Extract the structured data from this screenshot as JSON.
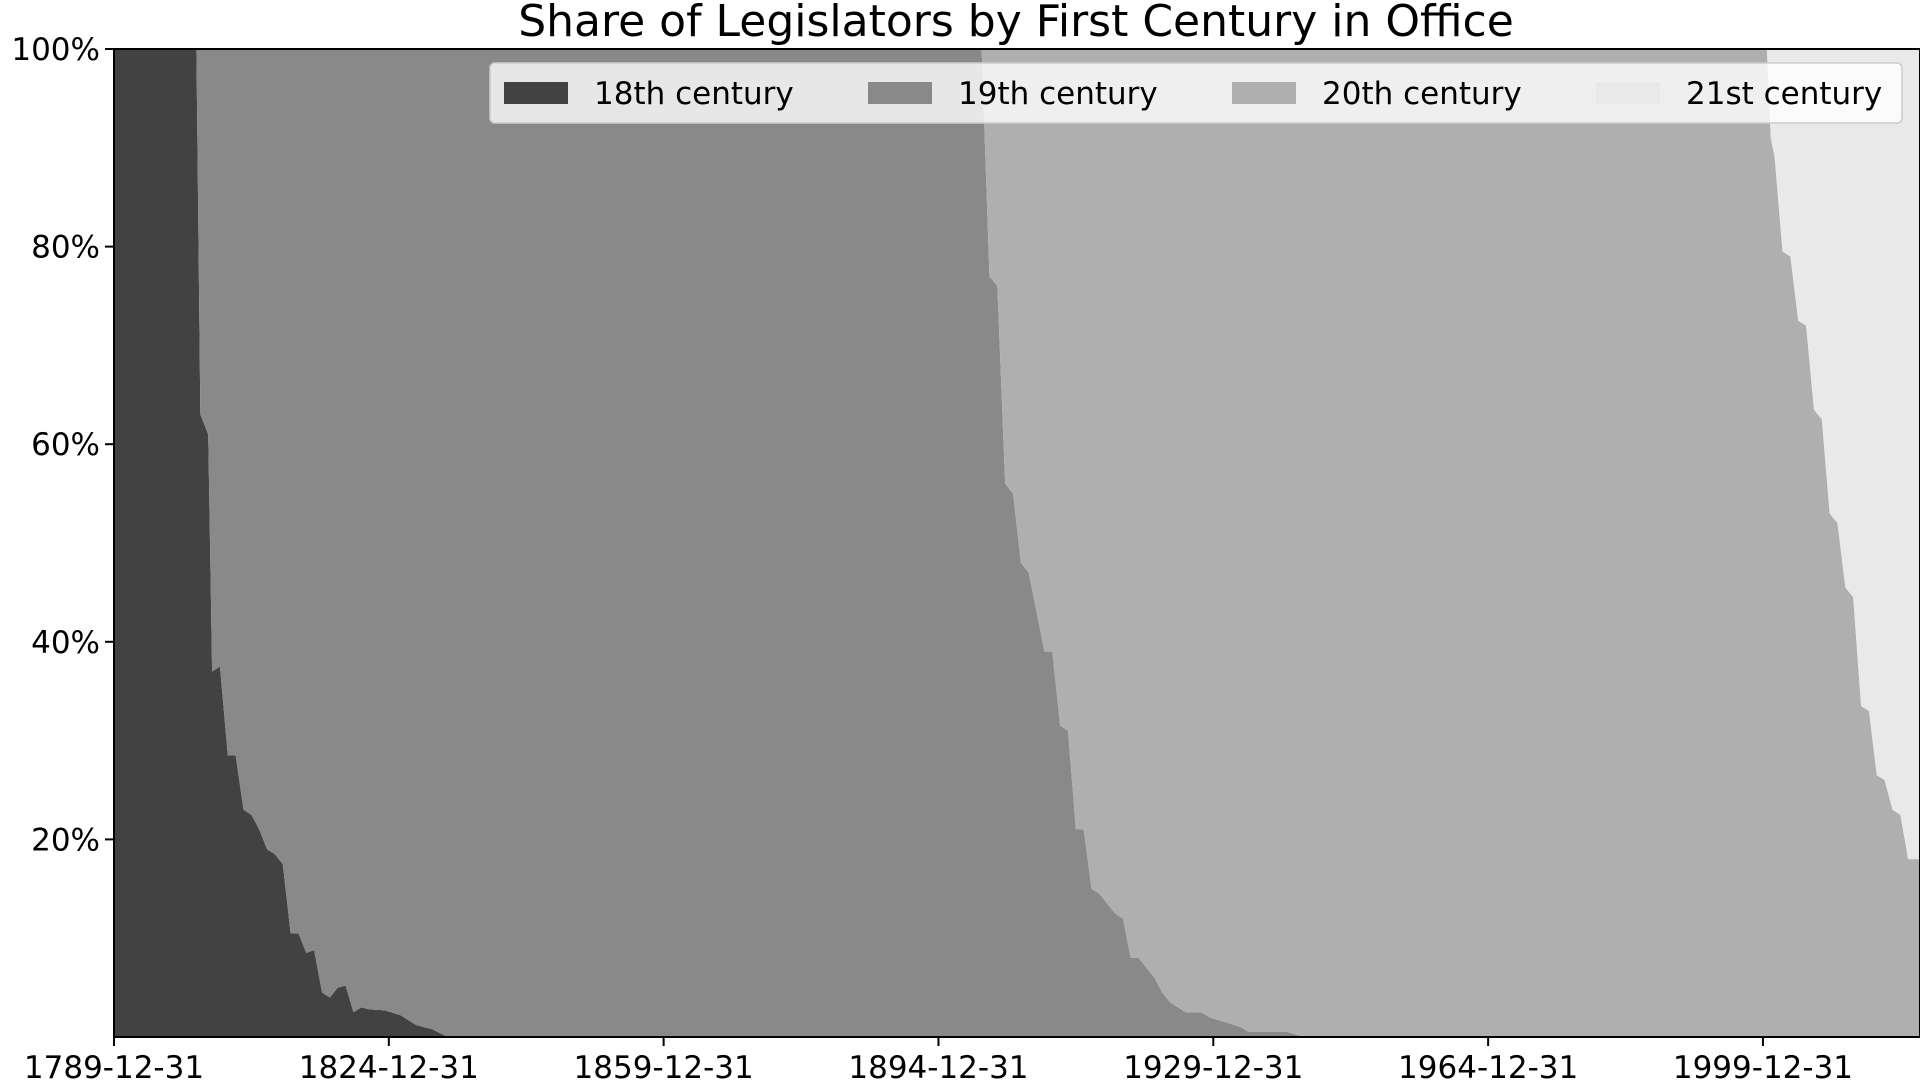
{
  "chart_data": {
    "type": "area",
    "stacked": true,
    "normalized": true,
    "title": "Share of Legislators by First Century in Office",
    "xlabel": "",
    "ylabel": "",
    "x_start": "1789-12-31",
    "x_end": "2019-12-31",
    "xlim": [
      "1789-12-31",
      "2019-12-31"
    ],
    "ylim": [
      0,
      1
    ],
    "x_ticks": [
      "1789-12-31",
      "1824-12-31",
      "1859-12-31",
      "1894-12-31",
      "1929-12-31",
      "1964-12-31",
      "1999-12-31"
    ],
    "y_ticks": [
      0.2,
      0.4,
      0.6,
      0.8,
      1.0
    ],
    "y_tick_labels": [
      "20%",
      "40%",
      "60%",
      "80%",
      "100%"
    ],
    "grid": false,
    "legend_position": "top-right",
    "series": [
      {
        "name": "18th century",
        "color": "#424242",
        "points": [
          [
            "1789-12-31",
            1.0
          ],
          [
            "1800-06-30",
            1.0
          ],
          [
            "1800-12-31",
            0.63
          ],
          [
            "1801-12-31",
            0.61
          ],
          [
            "1802-06-30",
            0.37
          ],
          [
            "1803-06-30",
            0.375
          ],
          [
            "1804-06-30",
            0.285
          ],
          [
            "1805-06-30",
            0.285
          ],
          [
            "1806-06-30",
            0.23
          ],
          [
            "1807-06-30",
            0.225
          ],
          [
            "1808-06-30",
            0.21
          ],
          [
            "1809-06-30",
            0.19
          ],
          [
            "1810-06-30",
            0.185
          ],
          [
            "1811-06-30",
            0.175
          ],
          [
            "1812-06-30",
            0.105
          ],
          [
            "1813-06-30",
            0.105
          ],
          [
            "1814-06-30",
            0.085
          ],
          [
            "1815-06-30",
            0.088
          ],
          [
            "1816-06-30",
            0.045
          ],
          [
            "1817-06-30",
            0.04
          ],
          [
            "1818-06-30",
            0.05
          ],
          [
            "1819-06-30",
            0.052
          ],
          [
            "1820-06-30",
            0.025
          ],
          [
            "1821-06-30",
            0.03
          ],
          [
            "1822-06-30",
            0.028
          ],
          [
            "1824-06-30",
            0.027
          ],
          [
            "1826-06-30",
            0.022
          ],
          [
            "1828-06-30",
            0.012
          ],
          [
            "1830-06-30",
            0.008
          ],
          [
            "1832-06-30",
            0.0
          ]
        ]
      },
      {
        "name": "19th century",
        "color": "#898989",
        "points": [
          [
            "1789-12-31",
            0.0
          ],
          [
            "1800-06-30",
            0.0
          ],
          [
            "1800-12-31",
            0.37
          ],
          [
            "1801-12-31",
            0.39
          ],
          [
            "1802-06-30",
            0.63
          ],
          [
            "1803-06-30",
            0.625
          ],
          [
            "1804-06-30",
            0.715
          ],
          [
            "1805-06-30",
            0.715
          ],
          [
            "1806-06-30",
            0.77
          ],
          [
            "1807-06-30",
            0.775
          ],
          [
            "1808-06-30",
            0.79
          ],
          [
            "1809-06-30",
            0.81
          ],
          [
            "1810-06-30",
            0.815
          ],
          [
            "1811-06-30",
            0.825
          ],
          [
            "1812-06-30",
            0.895
          ],
          [
            "1813-06-30",
            0.895
          ],
          [
            "1814-06-30",
            0.915
          ],
          [
            "1815-06-30",
            0.912
          ],
          [
            "1816-06-30",
            0.955
          ],
          [
            "1817-06-30",
            0.96
          ],
          [
            "1818-06-30",
            0.95
          ],
          [
            "1819-06-30",
            0.948
          ],
          [
            "1820-06-30",
            0.975
          ],
          [
            "1821-06-30",
            0.97
          ],
          [
            "1822-06-30",
            0.972
          ],
          [
            "1824-06-30",
            0.973
          ],
          [
            "1826-06-30",
            0.978
          ],
          [
            "1828-06-30",
            0.988
          ],
          [
            "1830-06-30",
            0.992
          ],
          [
            "1832-06-30",
            1.0
          ],
          [
            "1900-06-30",
            1.0
          ],
          [
            "1901-06-30",
            0.77
          ],
          [
            "1902-06-30",
            0.76
          ],
          [
            "1903-06-30",
            0.56
          ],
          [
            "1904-06-30",
            0.55
          ],
          [
            "1905-06-30",
            0.48
          ],
          [
            "1906-06-30",
            0.47
          ],
          [
            "1908-06-30",
            0.39
          ],
          [
            "1909-06-30",
            0.39
          ],
          [
            "1910-06-30",
            0.315
          ],
          [
            "1911-06-30",
            0.31
          ],
          [
            "1912-06-30",
            0.21
          ],
          [
            "1913-06-30",
            0.21
          ],
          [
            "1914-06-30",
            0.15
          ],
          [
            "1915-06-30",
            0.145
          ],
          [
            "1916-06-30",
            0.135
          ],
          [
            "1917-06-30",
            0.125
          ],
          [
            "1918-06-30",
            0.12
          ],
          [
            "1919-06-30",
            0.08
          ],
          [
            "1920-06-30",
            0.08
          ],
          [
            "1921-06-30",
            0.07
          ],
          [
            "1922-06-30",
            0.06
          ],
          [
            "1923-06-30",
            0.045
          ],
          [
            "1924-06-30",
            0.035
          ],
          [
            "1925-06-30",
            0.03
          ],
          [
            "1926-06-30",
            0.025
          ],
          [
            "1928-06-30",
            0.025
          ],
          [
            "1929-06-30",
            0.02
          ],
          [
            "1931-06-30",
            0.015
          ],
          [
            "1933-06-30",
            0.01
          ],
          [
            "1934-06-30",
            0.005
          ],
          [
            "1939-06-30",
            0.005
          ],
          [
            "1941-06-30",
            0.0
          ]
        ]
      },
      {
        "name": "20th century",
        "color": "#afafaf",
        "points": [
          [
            "1900-06-30",
            0.0
          ],
          [
            "1901-06-30",
            0.23
          ],
          [
            "1902-06-30",
            0.24
          ],
          [
            "1903-06-30",
            0.44
          ],
          [
            "1904-06-30",
            0.45
          ],
          [
            "1905-06-30",
            0.52
          ],
          [
            "1906-06-30",
            0.53
          ],
          [
            "1908-06-30",
            0.61
          ],
          [
            "1909-06-30",
            0.61
          ],
          [
            "1910-06-30",
            0.685
          ],
          [
            "1911-06-30",
            0.69
          ],
          [
            "1912-06-30",
            0.79
          ],
          [
            "1913-06-30",
            0.79
          ],
          [
            "1914-06-30",
            0.85
          ],
          [
            "1915-06-30",
            0.855
          ],
          [
            "1916-06-30",
            0.865
          ],
          [
            "1917-06-30",
            0.875
          ],
          [
            "1918-06-30",
            0.88
          ],
          [
            "1919-06-30",
            0.92
          ],
          [
            "1920-06-30",
            0.92
          ],
          [
            "1921-06-30",
            0.93
          ],
          [
            "1922-06-30",
            0.94
          ],
          [
            "1923-06-30",
            0.955
          ],
          [
            "1924-06-30",
            0.965
          ],
          [
            "1925-06-30",
            0.97
          ],
          [
            "1926-06-30",
            0.975
          ],
          [
            "1928-06-30",
            0.975
          ],
          [
            "1929-06-30",
            0.98
          ],
          [
            "1931-06-30",
            0.985
          ],
          [
            "1933-06-30",
            0.99
          ],
          [
            "1934-06-30",
            0.995
          ],
          [
            "1939-06-30",
            0.995
          ],
          [
            "1941-06-30",
            1.0
          ],
          [
            "2000-06-30",
            1.0
          ],
          [
            "2000-12-31",
            0.91
          ],
          [
            "2001-06-30",
            0.89
          ],
          [
            "2002-06-30",
            0.795
          ],
          [
            "2003-06-30",
            0.79
          ],
          [
            "2004-06-30",
            0.725
          ],
          [
            "2005-06-30",
            0.72
          ],
          [
            "2006-06-30",
            0.635
          ],
          [
            "2007-06-30",
            0.625
          ],
          [
            "2008-06-30",
            0.53
          ],
          [
            "2009-06-30",
            0.52
          ],
          [
            "2010-06-30",
            0.455
          ],
          [
            "2011-06-30",
            0.445
          ],
          [
            "2012-06-30",
            0.335
          ],
          [
            "2013-06-30",
            0.33
          ],
          [
            "2014-06-30",
            0.265
          ],
          [
            "2015-06-30",
            0.26
          ],
          [
            "2016-06-30",
            0.23
          ],
          [
            "2017-06-30",
            0.225
          ],
          [
            "2018-06-30",
            0.18
          ],
          [
            "2019-12-31",
            0.18
          ]
        ]
      },
      {
        "name": "21st century",
        "color": "#e9e9e9",
        "points": [
          [
            "2000-06-30",
            0.0
          ],
          [
            "2000-12-31",
            0.09
          ],
          [
            "2001-06-30",
            0.11
          ],
          [
            "2002-06-30",
            0.205
          ],
          [
            "2003-06-30",
            0.21
          ],
          [
            "2004-06-30",
            0.275
          ],
          [
            "2005-06-30",
            0.28
          ],
          [
            "2006-06-30",
            0.365
          ],
          [
            "2007-06-30",
            0.375
          ],
          [
            "2008-06-30",
            0.47
          ],
          [
            "2009-06-30",
            0.48
          ],
          [
            "2010-06-30",
            0.545
          ],
          [
            "2011-06-30",
            0.555
          ],
          [
            "2012-06-30",
            0.665
          ],
          [
            "2013-06-30",
            0.67
          ],
          [
            "2014-06-30",
            0.735
          ],
          [
            "2015-06-30",
            0.74
          ],
          [
            "2016-06-30",
            0.77
          ],
          [
            "2017-06-30",
            0.775
          ],
          [
            "2018-06-30",
            0.82
          ],
          [
            "2019-12-31",
            0.82
          ]
        ]
      }
    ]
  }
}
